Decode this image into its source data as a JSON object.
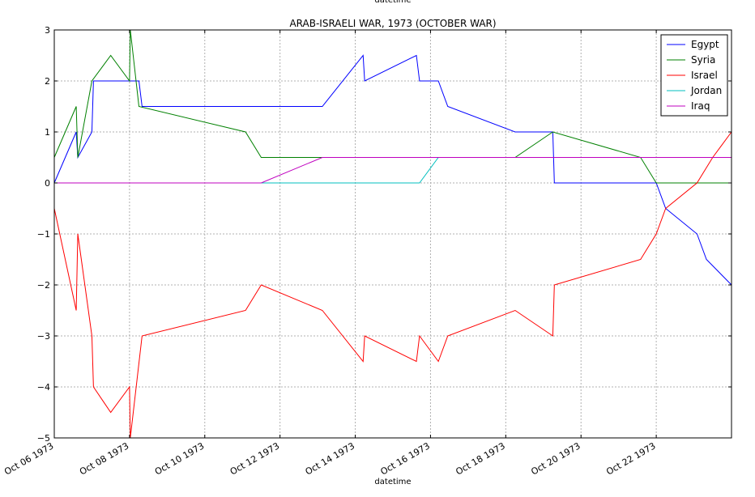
{
  "chart_data": {
    "type": "line",
    "title": "ARAB-ISRAELI WAR, 1973 (OCTOBER WAR)",
    "xlabel": "datetime",
    "top_label": "datetime",
    "ylabel": "",
    "xlim": [
      "1973-10-06",
      "1973-10-24"
    ],
    "ylim": [
      -5,
      3
    ],
    "grid": true,
    "legend_position": "top-right",
    "x_ticks": [
      {
        "date": "1973-10-06",
        "label": "Oct 06 1973"
      },
      {
        "date": "1973-10-08",
        "label": "Oct 08 1973"
      },
      {
        "date": "1973-10-10",
        "label": "Oct 10 1973"
      },
      {
        "date": "1973-10-12",
        "label": "Oct 12 1973"
      },
      {
        "date": "1973-10-14",
        "label": "Oct 14 1973"
      },
      {
        "date": "1973-10-16",
        "label": "Oct 16 1973"
      },
      {
        "date": "1973-10-18",
        "label": "Oct 18 1973"
      },
      {
        "date": "1973-10-20",
        "label": "Oct 20 1973"
      },
      {
        "date": "1973-10-22",
        "label": "Oct 22 1973"
      }
    ],
    "y_ticks": [
      {
        "value": 3,
        "label": "3"
      },
      {
        "value": 2,
        "label": "2"
      },
      {
        "value": 1,
        "label": "1"
      },
      {
        "value": 0,
        "label": "0"
      },
      {
        "value": -1,
        "label": "−1"
      },
      {
        "value": -2,
        "label": "−2"
      },
      {
        "value": -3,
        "label": "−3"
      },
      {
        "value": -4,
        "label": "−4"
      },
      {
        "value": -5,
        "label": "−5"
      }
    ],
    "series": [
      {
        "name": "Egypt",
        "color": "#0000ff",
        "points": [
          [
            "1973-10-06 00:00",
            0
          ],
          [
            "1973-10-06 14:00",
            1
          ],
          [
            "1973-10-06 15:00",
            0.5
          ],
          [
            "1973-10-07 00:00",
            1
          ],
          [
            "1973-10-07 01:00",
            2
          ],
          [
            "1973-10-08 06:00",
            2
          ],
          [
            "1973-10-08 08:00",
            1.5
          ],
          [
            "1973-10-13 03:00",
            1.5
          ],
          [
            "1973-10-14 05:00",
            2.5
          ],
          [
            "1973-10-14 06:00",
            2
          ],
          [
            "1973-10-15 15:00",
            2.5
          ],
          [
            "1973-10-15 17:00",
            2
          ],
          [
            "1973-10-16 05:00",
            2
          ],
          [
            "1973-10-16 11:00",
            1.5
          ],
          [
            "1973-10-18 06:00",
            1
          ],
          [
            "1973-10-19 06:00",
            1
          ],
          [
            "1973-10-19 07:00",
            0
          ],
          [
            "1973-10-22 00:00",
            0
          ],
          [
            "1973-10-22 06:00",
            -0.5
          ],
          [
            "1973-10-23 02:00",
            -1
          ],
          [
            "1973-10-23 08:00",
            -1.5
          ],
          [
            "1973-10-24 00:00",
            -2
          ]
        ]
      },
      {
        "name": "Syria",
        "color": "#008000",
        "points": [
          [
            "1973-10-06 00:00",
            0.5
          ],
          [
            "1973-10-06 14:00",
            1.5
          ],
          [
            "1973-10-06 15:00",
            0.5
          ],
          [
            "1973-10-07 00:00",
            2
          ],
          [
            "1973-10-07 12:00",
            2.5
          ],
          [
            "1973-10-08 00:00",
            2
          ],
          [
            "1973-10-08 00:30",
            3
          ],
          [
            "1973-10-08 06:00",
            1.5
          ],
          [
            "1973-10-11 02:00",
            1
          ],
          [
            "1973-10-11 12:00",
            0.5
          ],
          [
            "1973-10-18 06:00",
            0.5
          ],
          [
            "1973-10-19 06:00",
            1
          ],
          [
            "1973-10-21 14:00",
            0.5
          ],
          [
            "1973-10-22 00:00",
            0
          ],
          [
            "1973-10-24 00:00",
            0
          ]
        ]
      },
      {
        "name": "Israel",
        "color": "#ff0000",
        "points": [
          [
            "1973-10-06 00:00",
            -0.5
          ],
          [
            "1973-10-06 14:00",
            -2.5
          ],
          [
            "1973-10-06 15:00",
            -1
          ],
          [
            "1973-10-07 00:00",
            -3
          ],
          [
            "1973-10-07 01:00",
            -4
          ],
          [
            "1973-10-07 12:00",
            -4.5
          ],
          [
            "1973-10-08 00:00",
            -4
          ],
          [
            "1973-10-08 00:30",
            -5
          ],
          [
            "1973-10-08 08:00",
            -3
          ],
          [
            "1973-10-11 02:00",
            -2.5
          ],
          [
            "1973-10-11 12:00",
            -2
          ],
          [
            "1973-10-13 03:00",
            -2.5
          ],
          [
            "1973-10-14 05:00",
            -3.5
          ],
          [
            "1973-10-14 06:00",
            -3
          ],
          [
            "1973-10-15 15:00",
            -3.5
          ],
          [
            "1973-10-15 17:00",
            -3
          ],
          [
            "1973-10-16 05:00",
            -3.5
          ],
          [
            "1973-10-16 11:00",
            -3
          ],
          [
            "1973-10-18 06:00",
            -2.5
          ],
          [
            "1973-10-19 06:00",
            -3
          ],
          [
            "1973-10-19 07:00",
            -2
          ],
          [
            "1973-10-21 14:00",
            -1.5
          ],
          [
            "1973-10-22 00:00",
            -1
          ],
          [
            "1973-10-22 06:00",
            -0.5
          ],
          [
            "1973-10-23 02:00",
            0
          ],
          [
            "1973-10-23 12:00",
            0.5
          ],
          [
            "1973-10-24 00:00",
            1
          ]
        ]
      },
      {
        "name": "Jordan",
        "color": "#00bfbf",
        "points": [
          [
            "1973-10-06 00:00",
            0
          ],
          [
            "1973-10-15 17:00",
            0
          ],
          [
            "1973-10-16 05:00",
            0.5
          ],
          [
            "1973-10-24 00:00",
            0.5
          ]
        ]
      },
      {
        "name": "Iraq",
        "color": "#bf00bf",
        "points": [
          [
            "1973-10-06 00:00",
            0
          ],
          [
            "1973-10-11 12:00",
            0
          ],
          [
            "1973-10-13 03:00",
            0.5
          ],
          [
            "1973-10-24 00:00",
            0.5
          ]
        ]
      }
    ]
  }
}
